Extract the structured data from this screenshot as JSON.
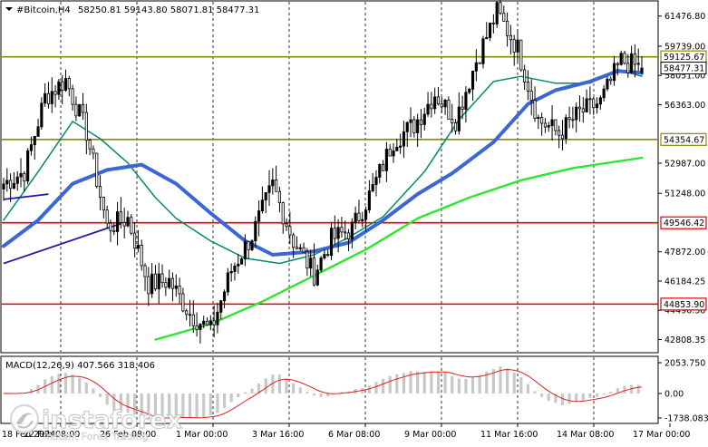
{
  "header": {
    "symbol_label": "#Bitcoin,H4",
    "ohlc_text": "58250.81 59143.80 58071.81 58477.31"
  },
  "macd": {
    "label": "MACD(12,26,9) 407.566 318.406",
    "axis_ticks": [
      "2053.750",
      "0.00",
      "-1738.083"
    ]
  },
  "price_axis": {
    "ticks": [
      {
        "label": "61476.80",
        "value": 61476.8
      },
      {
        "label": "59739.00",
        "value": 59739.0
      },
      {
        "label": "58051.00",
        "value": 58051.0
      },
      {
        "label": "56363.00",
        "value": 56363.0
      },
      {
        "label": "52987.00",
        "value": 52987.0
      },
      {
        "label": "51248.00",
        "value": 51248.0
      },
      {
        "label": "47872.00",
        "value": 47872.0
      },
      {
        "label": "46184.25",
        "value": 46184.25
      },
      {
        "label": "44496.30",
        "value": 44496.3
      },
      {
        "label": "42808.35",
        "value": 42808.35
      }
    ]
  },
  "levels": [
    {
      "label": "59125.67",
      "value": 59125.67,
      "color": "#8b8b00",
      "kind": "resistance"
    },
    {
      "label": "54354.67",
      "value": 54354.67,
      "color": "#8b8b00",
      "kind": "support"
    },
    {
      "label": "49546.42",
      "value": 49546.42,
      "color": "#dd0000",
      "kind": "support"
    },
    {
      "label": "44853.90",
      "value": 44853.9,
      "color": "#dd0000",
      "kind": "support"
    }
  ],
  "current_price": {
    "label": "58477.31",
    "value": 58477.31
  },
  "time_axis": [
    "18 Feb 2024",
    "22 Feb 08:00",
    "26 Feb 08:00",
    "1 Mar 00:00",
    "3 Mar 16:00",
    "6 Mar 08:00",
    "9 Mar 00:00",
    "11 Mar 16:00",
    "14 Mar 08:00",
    "17 Mar 00:00"
  ],
  "watermark": {
    "brand": "instaforex",
    "tagline": "Instant Forex Trading"
  },
  "colors": {
    "bull_candle": "#000000",
    "ma_fast": "#008b6b",
    "ma_mid": "#3a66d6",
    "ma_slow": "#2ee62e",
    "trendline": "#1a1aa0",
    "macd_hist": "#c8c8c8",
    "macd_signal": "#e02020",
    "grid": "#000000"
  },
  "chart_data": {
    "type": "candlestick",
    "symbol": "#Bitcoin",
    "timeframe": "H4",
    "ohlc": {
      "open": 58250.81,
      "high": 59143.8,
      "low": 58071.81,
      "close": 58477.31
    },
    "ylim": [
      42100,
      62300
    ],
    "key_points": [
      {
        "x": "18 Feb 2024",
        "close": 51800
      },
      {
        "x": "20 Feb",
        "close": 52500
      },
      {
        "x": "21 Feb",
        "close": 56800
      },
      {
        "x": "22 Feb 08:00",
        "close": 57800
      },
      {
        "x": "23 Feb",
        "close": 54800
      },
      {
        "x": "24 Feb",
        "close": 49300
      },
      {
        "x": "25 Feb",
        "close": 49800
      },
      {
        "x": "26 Feb 08:00",
        "close": 46000
      },
      {
        "x": "27 Feb",
        "close": 46200
      },
      {
        "x": "28 Feb",
        "close": 44300
      },
      {
        "x": "29 Feb",
        "close": 43300
      },
      {
        "x": "1 Mar 00:00",
        "close": 46800
      },
      {
        "x": "2 Mar",
        "close": 48800
      },
      {
        "x": "3 Mar",
        "close": 51700
      },
      {
        "x": "3 Mar 16:00",
        "close": 48500
      },
      {
        "x": "4 Mar",
        "close": 46600
      },
      {
        "x": "5 Mar",
        "close": 48600
      },
      {
        "x": "6 Mar 08:00",
        "close": 49200
      },
      {
        "x": "7 Mar",
        "close": 51500
      },
      {
        "x": "8 Mar",
        "close": 54300
      },
      {
        "x": "9 Mar 00:00",
        "close": 55200
      },
      {
        "x": "10 Mar",
        "close": 57000
      },
      {
        "x": "11 Mar",
        "close": 55500
      },
      {
        "x": "11 Mar 16:00",
        "close": 58900
      },
      {
        "x": "12 Mar",
        "close": 61700
      },
      {
        "x": "13 Mar",
        "close": 59600
      },
      {
        "x": "14 Mar 08:00",
        "close": 55500
      },
      {
        "x": "15 Mar",
        "close": 54700
      },
      {
        "x": "16 Mar",
        "close": 55900
      },
      {
        "x": "17 Mar 00:00",
        "close": 56500
      },
      {
        "x": "17 Mar",
        "close": 58900
      },
      {
        "x": "18 Mar",
        "close": 58477.31
      }
    ],
    "moving_averages": [
      {
        "color": "#008b6b",
        "points": [
          [
            0,
            49700
          ],
          [
            10,
            52500
          ],
          [
            20,
            55400
          ],
          [
            28,
            54400
          ],
          [
            36,
            53000
          ],
          [
            44,
            51000
          ],
          [
            50,
            49800
          ],
          [
            60,
            48500
          ],
          [
            70,
            47500
          ],
          [
            80,
            47200
          ],
          [
            90,
            47700
          ],
          [
            100,
            48700
          ],
          [
            110,
            49900
          ],
          [
            122,
            52500
          ],
          [
            132,
            55500
          ],
          [
            142,
            57700
          ],
          [
            150,
            58000
          ],
          [
            160,
            57600
          ],
          [
            170,
            57600
          ],
          [
            178,
            58400
          ],
          [
            185,
            58000
          ]
        ]
      },
      {
        "color": "#3a66d6",
        "points": [
          [
            0,
            48200
          ],
          [
            10,
            49700
          ],
          [
            20,
            51800
          ],
          [
            30,
            52600
          ],
          [
            40,
            52900
          ],
          [
            50,
            51800
          ],
          [
            60,
            50100
          ],
          [
            70,
            48500
          ],
          [
            78,
            47700
          ],
          [
            90,
            47900
          ],
          [
            100,
            48400
          ],
          [
            110,
            49700
          ],
          [
            120,
            51200
          ],
          [
            130,
            52400
          ],
          [
            142,
            54200
          ],
          [
            152,
            56400
          ],
          [
            160,
            57200
          ],
          [
            170,
            57700
          ],
          [
            178,
            58300
          ],
          [
            185,
            58200
          ]
        ]
      },
      {
        "color": "#2ee62e",
        "points": [
          [
            44,
            42800
          ],
          [
            60,
            43700
          ],
          [
            75,
            45000
          ],
          [
            90,
            46500
          ],
          [
            105,
            48000
          ],
          [
            120,
            49800
          ],
          [
            135,
            51000
          ],
          [
            150,
            52000
          ],
          [
            165,
            52700
          ],
          [
            185,
            53300
          ]
        ]
      }
    ],
    "trendlines": [
      {
        "from": [
          0,
          50900
        ],
        "to": [
          13,
          51200
        ]
      },
      {
        "from": [
          0,
          47200
        ],
        "to": [
          34,
          49500
        ]
      }
    ],
    "macd_indicator": {
      "fast": 12,
      "slow": 26,
      "signal": 9,
      "macd_value": 407.566,
      "signal_value": 318.406
    }
  }
}
